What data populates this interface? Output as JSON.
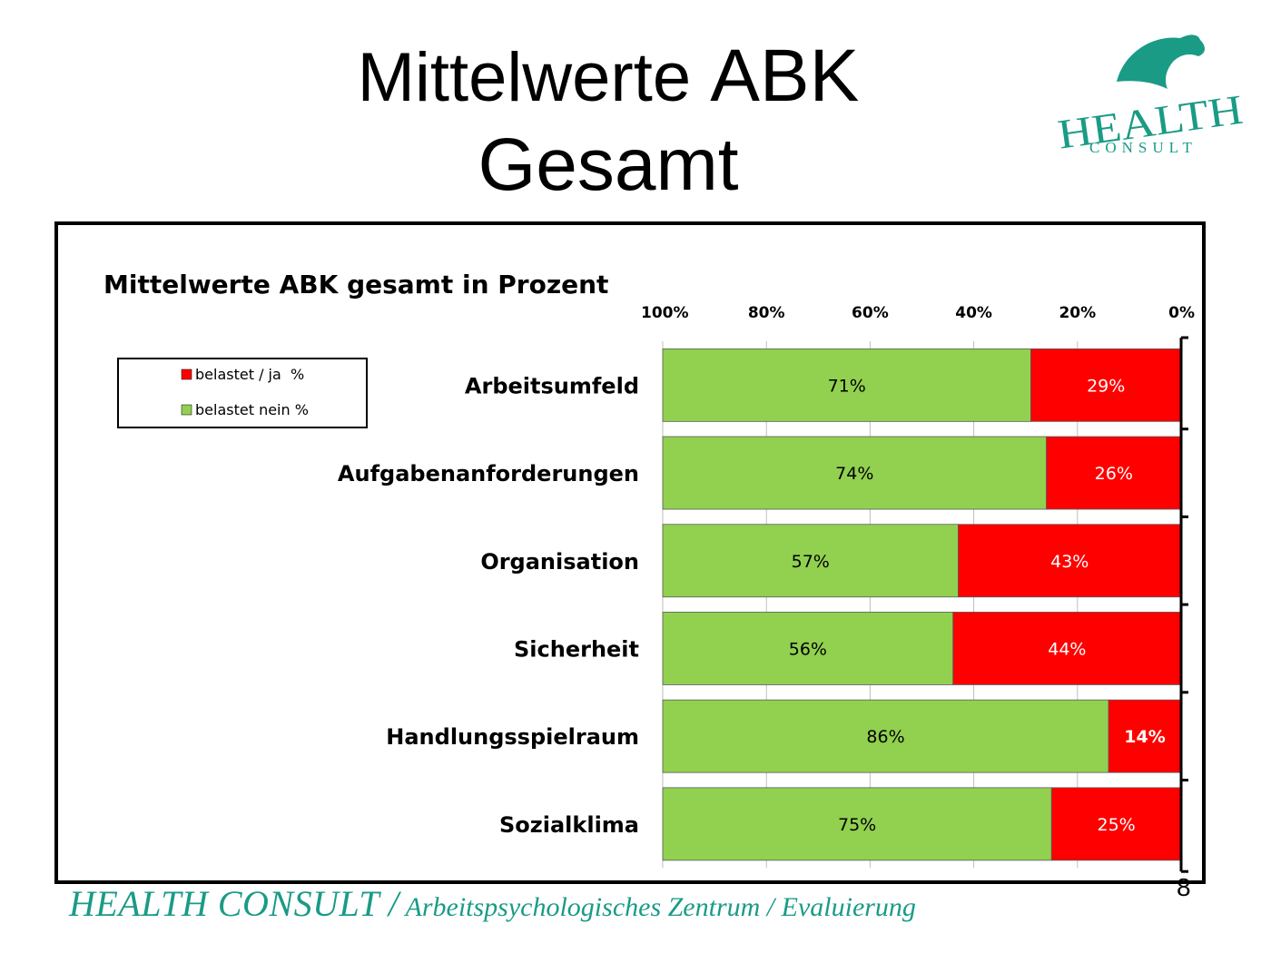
{
  "slide": {
    "title_line1_a": "Mittelwerte ",
    "title_line1_b": "ABK",
    "title_line2": "Gesamt",
    "logo_text_top": "HEALTH",
    "logo_text_bottom": "CONSULT",
    "footer_brand": "HEALTH CONSULT /",
    "footer_rest": " Arbeitspsychologisches Zentrum / Evaluierung",
    "page_number": "8"
  },
  "colors": {
    "belastet_ja": "#ff0000",
    "belastet_nein": "#92d050",
    "footer_teal": "#1a9b86"
  },
  "chart_data": {
    "type": "bar",
    "orientation": "horizontal-stacked-100",
    "title": "Mittelwerte ABK gesamt in Prozent",
    "x_axis_reversed": true,
    "xlim": [
      0,
      100
    ],
    "ticks": [
      "100%",
      "80%",
      "60%",
      "40%",
      "20%",
      "0%"
    ],
    "grid": true,
    "legend_position": "top-left",
    "categories": [
      "Arbeitsumfeld",
      "Aufgabenanforderungen",
      "Organisation",
      "Sicherheit",
      "Handlungsspielraum",
      "Sozialklima"
    ],
    "series": [
      {
        "name": "belastet / ja  %",
        "values": [
          29,
          26,
          43,
          44,
          14,
          25
        ],
        "labels": [
          "29%",
          "26%",
          "43%",
          "44%",
          "14%",
          "25%"
        ]
      },
      {
        "name": "belastet nein %",
        "values": [
          71,
          74,
          57,
          56,
          86,
          75
        ],
        "labels": [
          "71%",
          "74%",
          "57%",
          "56%",
          "86%",
          "75%"
        ]
      }
    ]
  }
}
